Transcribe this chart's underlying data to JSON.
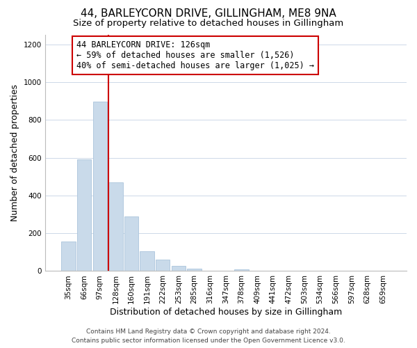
{
  "title": "44, BARLEYCORN DRIVE, GILLINGHAM, ME8 9NA",
  "subtitle": "Size of property relative to detached houses in Gillingham",
  "xlabel": "Distribution of detached houses by size in Gillingham",
  "ylabel": "Number of detached properties",
  "bar_labels": [
    "35sqm",
    "66sqm",
    "97sqm",
    "128sqm",
    "160sqm",
    "191sqm",
    "222sqm",
    "253sqm",
    "285sqm",
    "316sqm",
    "347sqm",
    "378sqm",
    "409sqm",
    "441sqm",
    "472sqm",
    "503sqm",
    "534sqm",
    "566sqm",
    "597sqm",
    "628sqm",
    "659sqm"
  ],
  "bar_values": [
    155,
    590,
    895,
    470,
    290,
    105,
    62,
    28,
    14,
    0,
    0,
    10,
    0,
    0,
    0,
    0,
    0,
    0,
    0,
    0,
    0
  ],
  "bar_color": "#c9daea",
  "bar_edge_color": "#aac4dc",
  "vline_color": "#cc0000",
  "annotation_box_text": "44 BARLEYCORN DRIVE: 126sqm\n← 59% of detached houses are smaller (1,526)\n40% of semi-detached houses are larger (1,025) →",
  "annotation_box_edge_color": "#cc0000",
  "annotation_box_face_color": "#ffffff",
  "ylim": [
    0,
    1250
  ],
  "yticks": [
    0,
    200,
    400,
    600,
    800,
    1000,
    1200
  ],
  "footer_line1": "Contains HM Land Registry data © Crown copyright and database right 2024.",
  "footer_line2": "Contains public sector information licensed under the Open Government Licence v3.0.",
  "background_color": "#ffffff",
  "grid_color": "#cdd8e8",
  "title_fontsize": 11,
  "subtitle_fontsize": 9.5,
  "xlabel_fontsize": 9,
  "ylabel_fontsize": 9,
  "tick_fontsize": 7.5,
  "annotation_fontsize": 8.5,
  "footer_fontsize": 6.5
}
